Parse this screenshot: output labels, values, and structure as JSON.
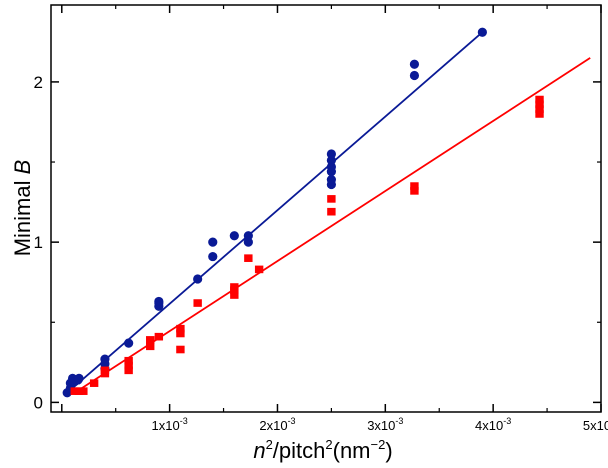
{
  "chart_data": {
    "type": "scatter",
    "xlim": [
      -0.0001,
      0.005
    ],
    "ylim": [
      -0.06,
      2.48
    ],
    "x_ticks": [
      {
        "value": 0.001,
        "mantissa": "1x10",
        "exp": "-3"
      },
      {
        "value": 0.002,
        "mantissa": "2x10",
        "exp": "-3"
      },
      {
        "value": 0.003,
        "mantissa": "3x10",
        "exp": "-3"
      },
      {
        "value": 0.004,
        "mantissa": "4x10",
        "exp": "-3"
      },
      {
        "value": 0.005,
        "mantissa": "5x10",
        "exp": "-3"
      }
    ],
    "y_ticks": [
      {
        "value": 0,
        "label": "0"
      },
      {
        "value": 1,
        "label": "1"
      },
      {
        "value": 2,
        "label": "2"
      }
    ],
    "xlabel": {
      "n": "n",
      "sup1": "2",
      "mid": "/pitch",
      "sup2": "2",
      "open": "(nm",
      "sup3": "−2",
      "close": ")"
    },
    "ylabel": {
      "prefix": "Minimal ",
      "var": "B"
    },
    "series": [
      {
        "marker": "circle",
        "color": "#0a1a96",
        "points": [
          [
            5e-05,
            0.06
          ],
          [
            8e-05,
            0.09
          ],
          [
            8e-05,
            0.12
          ],
          [
            0.0001,
            0.13
          ],
          [
            0.0001,
            0.15
          ],
          [
            0.00012,
            0.13
          ],
          [
            0.00015,
            0.14
          ],
          [
            0.00016,
            0.15
          ],
          [
            0.0004,
            0.21
          ],
          [
            0.0004,
            0.24
          ],
          [
            0.0004,
            0.27
          ],
          [
            0.00062,
            0.37
          ],
          [
            0.0009,
            0.6
          ],
          [
            0.0009,
            0.62
          ],
          [
            0.0009,
            0.63
          ],
          [
            0.00126,
            0.77
          ],
          [
            0.0014,
            0.91
          ],
          [
            0.0014,
            1.0
          ],
          [
            0.0016,
            1.04
          ],
          [
            0.00173,
            1.0
          ],
          [
            0.00173,
            1.04
          ],
          [
            0.0025,
            1.36
          ],
          [
            0.0025,
            1.39
          ],
          [
            0.0025,
            1.44
          ],
          [
            0.0025,
            1.47
          ],
          [
            0.0025,
            1.51
          ],
          [
            0.0025,
            1.55
          ],
          [
            0.00327,
            2.04
          ],
          [
            0.00327,
            2.11
          ],
          [
            0.0039,
            2.31
          ]
        ],
        "fit": {
          "x": [
            5e-05,
            0.0039
          ],
          "y": [
            0.06,
            2.31
          ]
        }
      },
      {
        "marker": "square",
        "color": "#ff0000",
        "points": [
          [
            0.00012,
            0.07
          ],
          [
            0.00016,
            0.07
          ],
          [
            0.0002,
            0.07
          ],
          [
            0.0003,
            0.12
          ],
          [
            0.0004,
            0.18
          ],
          [
            0.0004,
            0.2
          ],
          [
            0.00062,
            0.2
          ],
          [
            0.00062,
            0.23
          ],
          [
            0.00062,
            0.26
          ],
          [
            0.00082,
            0.35
          ],
          [
            0.00082,
            0.39
          ],
          [
            0.0009,
            0.41
          ],
          [
            0.0011,
            0.33
          ],
          [
            0.0011,
            0.43
          ],
          [
            0.0011,
            0.46
          ],
          [
            0.00126,
            0.62
          ],
          [
            0.0016,
            0.67
          ],
          [
            0.0016,
            0.7
          ],
          [
            0.0016,
            0.72
          ],
          [
            0.00173,
            0.9
          ],
          [
            0.00183,
            0.83
          ],
          [
            0.0025,
            1.19
          ],
          [
            0.0025,
            1.27
          ],
          [
            0.00327,
            1.32
          ],
          [
            0.00327,
            1.35
          ],
          [
            0.00443,
            1.8
          ],
          [
            0.00443,
            1.83
          ],
          [
            0.00443,
            1.86
          ],
          [
            0.00443,
            1.89
          ]
        ],
        "fit": {
          "x": [
            0.00012,
            0.0049
          ],
          "y": [
            0.06,
            2.15
          ]
        }
      }
    ],
    "grid": false,
    "legend": "none"
  }
}
